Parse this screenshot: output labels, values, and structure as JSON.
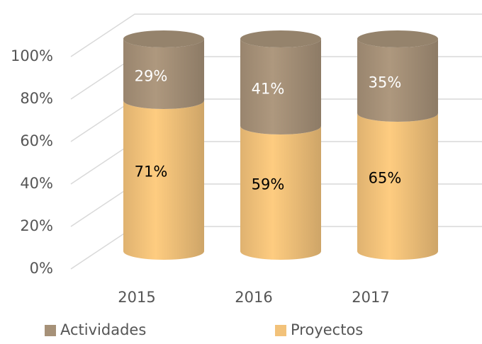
{
  "chart_data": {
    "type": "bar3d_stacked",
    "categories": [
      "2015",
      "2016",
      "2017"
    ],
    "series": [
      {
        "name": "Proyectos",
        "color": "#f2c27a",
        "values": [
          71,
          59,
          65
        ],
        "value_labels": [
          "71%",
          "59%",
          "65%"
        ]
      },
      {
        "name": "Actividades",
        "color": "#a69178",
        "values": [
          29,
          41,
          35
        ],
        "value_labels": [
          "29%",
          "41%",
          "35%"
        ]
      }
    ],
    "ylim": [
      0,
      100
    ],
    "yticks": [
      {
        "value": 0,
        "label": "0%"
      },
      {
        "value": 20,
        "label": "20%"
      },
      {
        "value": 40,
        "label": "40%"
      },
      {
        "value": 60,
        "label": "60%"
      },
      {
        "value": 80,
        "label": "80%"
      },
      {
        "value": 100,
        "label": "100%"
      }
    ],
    "grid": true
  }
}
